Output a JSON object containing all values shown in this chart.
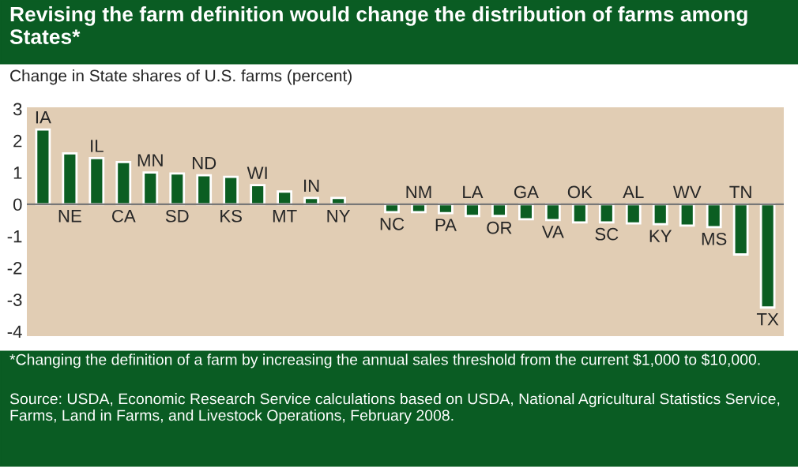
{
  "chart_data": {
    "type": "bar",
    "title": "Revising the farm definition would change the distribution of farms among States*",
    "ylabel": "Change in State shares of U.S. farms (percent)",
    "categories": [
      "IA",
      "NE",
      "IL",
      "CA",
      "MN",
      "SD",
      "ND",
      "KS",
      "WI",
      "MT",
      "IN",
      "NY",
      null,
      "NC",
      "NM",
      "PA",
      "LA",
      "OR",
      "GA",
      "VA",
      "OK",
      "SC",
      "AL",
      "KY",
      "WV",
      "MS",
      "TN",
      "TX"
    ],
    "values": [
      2.35,
      1.6,
      1.45,
      1.33,
      1.0,
      0.97,
      0.91,
      0.86,
      0.6,
      0.4,
      0.2,
      0.2,
      null,
      -0.25,
      -0.25,
      -0.28,
      -0.37,
      -0.37,
      -0.47,
      -0.5,
      -0.57,
      -0.57,
      -0.6,
      -0.63,
      -0.67,
      -0.72,
      -1.58,
      -3.25
    ],
    "color": "#0b5e22",
    "ylim": [
      -4.15,
      3.05
    ],
    "yticks": [
      -4,
      -3,
      -2,
      -1,
      0,
      1,
      2,
      3
    ],
    "grid": false,
    "annotations": [
      "*Changing the definition of a farm by increasing the annual sales threshold from the current $1,000 to $10,000.",
      "Source: USDA, Economic Research Service calculations based on USDA, National Agricultural Statistics Service, Farms, Land in Farms, and Livestock Operations, February 2008."
    ]
  }
}
